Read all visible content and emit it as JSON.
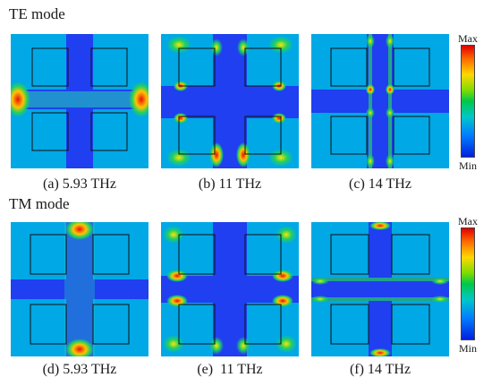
{
  "te_section": {
    "title": "TE mode",
    "captions": [
      "(a) 5.93 THz",
      "(b) 11 THz",
      "(c) 14 THz"
    ]
  },
  "tm_section": {
    "title": "TM mode",
    "captions": [
      "(d) 5.93 THz",
      "(e)  11 THz",
      "(f) 14 THz"
    ]
  },
  "colorbar": {
    "max_label": "Max",
    "min_label": "Min"
  },
  "colors": {
    "field_low": "#1f3ff0",
    "field_mid": "#00b4e8",
    "field_green": "#22d060",
    "field_high": "#e81010",
    "field_yellow": "#ffe400"
  }
}
